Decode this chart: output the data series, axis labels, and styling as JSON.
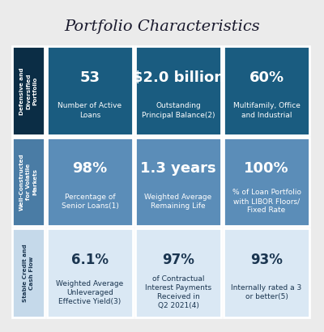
{
  "title": "Portfolio Characteristics",
  "title_fontsize": 14,
  "title_color": "#1a1a2e",
  "background_color": "#ebebeb",
  "row_labels": [
    "Defensive and\nDiversified\nPortfolio",
    "Well-Constructed\nfor Volatile\nMarkets",
    "Stable Credit and\nCash Flow"
  ],
  "row_label_colors": [
    "#0b2d45",
    "#4a7ca5",
    "#c5d9ea"
  ],
  "row_label_text_colors": [
    "#ffffff",
    "#ffffff",
    "#1a3550"
  ],
  "cell_colors": [
    [
      "#1a5c80",
      "#1a5c80",
      "#1a5c80"
    ],
    [
      "#5b8db8",
      "#5b8db8",
      "#5b8db8"
    ],
    [
      "#dae8f4",
      "#dae8f4",
      "#dae8f4"
    ]
  ],
  "cell_text_colors": [
    [
      "#ffffff",
      "#ffffff",
      "#ffffff"
    ],
    [
      "#ffffff",
      "#ffffff",
      "#ffffff"
    ],
    [
      "#1a3550",
      "#1a3550",
      "#1a3550"
    ]
  ],
  "big_values": [
    [
      "53",
      "$2.0 billion",
      "60%"
    ],
    [
      "98%",
      "1.3 years",
      "100%"
    ],
    [
      "6.1%",
      "97%",
      "93%"
    ]
  ],
  "small_labels": [
    [
      "Number of Active\nLoans",
      "Outstanding\nPrincipal Balanceⁿ²⁾",
      "Multifamily, Office\nand Industrial"
    ],
    [
      "Percentage of\nSenior Loansⁿ¹⁾",
      "Weighted Average\nRemaining Life",
      "% of Loan Portfolio\nwith LIBOR Floors/\nFixed Rate"
    ],
    [
      "Weighted Average\nUnleveraged\nEffective Yieldⁿ³⁾",
      "of Contractual\nInterest Payments\nReceived in\nQ2 2021ⁿ⁴⁾",
      "Internally rated a 3\nor betterⁿ⁵⁾"
    ]
  ],
  "small_labels_plain": [
    [
      "Number of Active\nLoans",
      "Outstanding\nPrincipal Balance(2)",
      "Multifamily, Office\nand Industrial"
    ],
    [
      "Percentage of\nSenior Loans(1)",
      "Weighted Average\nRemaining Life",
      "% of Loan Portfolio\nwith LIBOR Floors/\nFixed Rate"
    ],
    [
      "Weighted Average\nUnleveraged\nEffective Yield(3)",
      "of Contractual\nInterest Payments\nReceived in\nQ2 2021(4)",
      "Internally rated a 3\nor better(5)"
    ]
  ]
}
